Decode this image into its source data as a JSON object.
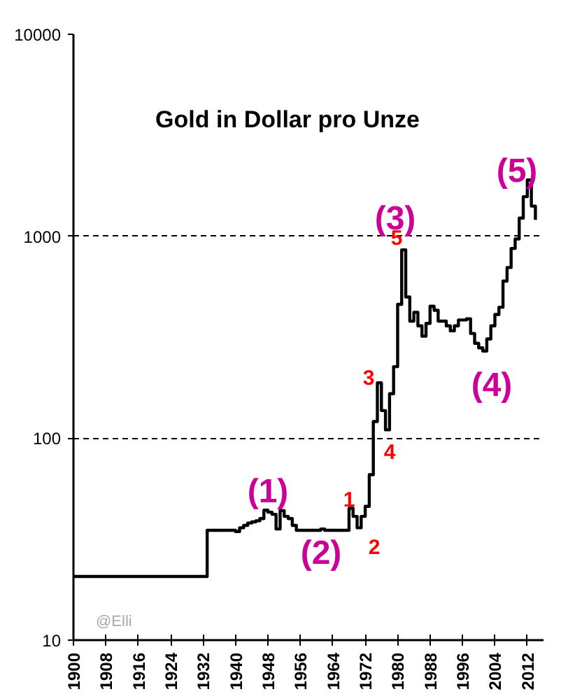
{
  "chart_data": {
    "type": "step",
    "title": "Gold in Dollar pro Unze",
    "x": [
      1900,
      1933,
      1934,
      1940,
      1941,
      1942,
      1943,
      1944,
      1945,
      1946,
      1947,
      1948,
      1949,
      1950,
      1951,
      1952,
      1953,
      1954,
      1955,
      1961,
      1962,
      1968,
      1969,
      1970,
      1971,
      1972,
      1973,
      1974,
      1975,
      1976,
      1977,
      1978,
      1979,
      1980,
      1981,
      1982,
      1983,
      1984,
      1985,
      1986,
      1987,
      1988,
      1989,
      1990,
      1991,
      1992,
      1993,
      1994,
      1995,
      1996,
      1997,
      1998,
      1999,
      2000,
      2001,
      2002,
      2003,
      2004,
      2005,
      2006,
      2007,
      2008,
      2009,
      2010,
      2011,
      2012,
      2013,
      2014
    ],
    "series": [
      {
        "color": "#000000",
        "values": [
          20.67,
          35,
          35,
          34.5,
          36,
          37,
          38,
          38.5,
          39,
          40,
          44,
          43,
          42,
          35.5,
          43.8,
          41,
          40,
          37,
          35,
          35.5,
          35,
          45,
          41,
          36,
          41,
          46,
          66,
          121,
          188,
          137,
          110,
          166,
          226,
          460,
          855,
          500,
          380,
          420,
          360,
          320,
          370,
          450,
          430,
          380,
          380,
          360,
          340,
          360,
          385,
          385,
          390,
          330,
          295,
          280,
          270,
          310,
          360,
          410,
          445,
          600,
          700,
          870,
          970,
          1230,
          1570,
          1900,
          1410,
          1205
        ]
      }
    ],
    "xlim": [
      1900,
      2016
    ],
    "xticks": [
      1900,
      1908,
      1916,
      1924,
      1932,
      1940,
      1948,
      1956,
      1964,
      1972,
      1980,
      1988,
      1996,
      2004,
      2012
    ],
    "ylim": [
      10,
      10000
    ],
    "yticks": [
      10,
      100,
      1000,
      10000
    ],
    "log": true,
    "grid": "y",
    "line_style": "solid",
    "annotations": [
      "(1)",
      "(2)",
      "(3)",
      "(4)",
      "(5)",
      "1",
      "2",
      "3",
      "4",
      "5",
      "@Elli"
    ]
  }
}
